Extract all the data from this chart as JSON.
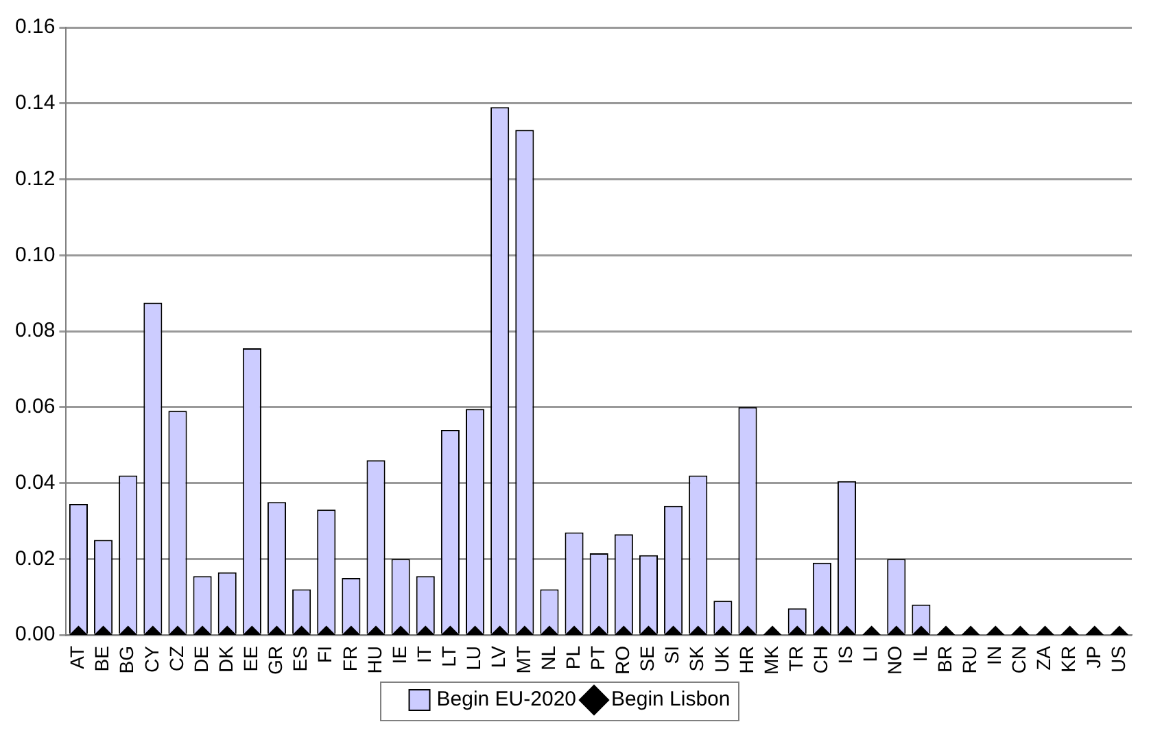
{
  "chart_data": {
    "type": "bar",
    "categories": [
      "AT",
      "BE",
      "BG",
      "CY",
      "CZ",
      "DE",
      "DK",
      "EE",
      "GR",
      "ES",
      "FI",
      "FR",
      "HU",
      "IE",
      "IT",
      "LT",
      "LU",
      "LV",
      "MT",
      "NL",
      "PL",
      "PT",
      "RO",
      "SE",
      "SI",
      "SK",
      "UK",
      "HR",
      "MK",
      "TR",
      "CH",
      "IS",
      "LI",
      "NO",
      "IL",
      "BR",
      "RU",
      "IN",
      "CN",
      "ZA",
      "KR",
      "JP",
      "US"
    ],
    "series": [
      {
        "name": "Begin EU-2020",
        "color": "#ccccff",
        "values": [
          0.0345,
          0.025,
          0.042,
          0.0875,
          0.059,
          0.0155,
          0.0165,
          0.0755,
          0.035,
          0.012,
          0.033,
          0.015,
          0.046,
          0.02,
          0.0155,
          0.054,
          0.0595,
          0.139,
          0.133,
          0.012,
          0.027,
          0.0215,
          0.0265,
          0.021,
          0.034,
          0.042,
          0.009,
          0.06,
          0,
          0.007,
          0.019,
          0.0405,
          0,
          0.02,
          0.008,
          0,
          0,
          0,
          0,
          0,
          0,
          0,
          0
        ]
      },
      {
        "name": "Begin Lisbon",
        "type": "scatter",
        "color": "#000000",
        "marker": "diamond",
        "values": [
          0,
          0,
          0,
          0,
          0,
          0,
          0,
          0,
          0,
          0,
          0,
          0,
          0,
          0,
          0,
          0,
          0,
          0,
          0,
          0,
          0,
          0,
          0,
          0,
          0,
          0,
          0,
          0,
          0,
          0,
          0,
          0,
          0,
          0,
          0,
          0,
          0,
          0,
          0,
          0,
          0,
          0,
          0
        ]
      }
    ],
    "ylim": [
      0,
      0.16
    ],
    "yticks": [
      {
        "value": 0,
        "label": "0.00"
      },
      0.02,
      0.04,
      0.06,
      0.08,
      {
        "value": 0.1,
        "label": "0.10"
      },
      0.12,
      0.14,
      0.16
    ],
    "grid": "y",
    "legend": "bottom"
  }
}
